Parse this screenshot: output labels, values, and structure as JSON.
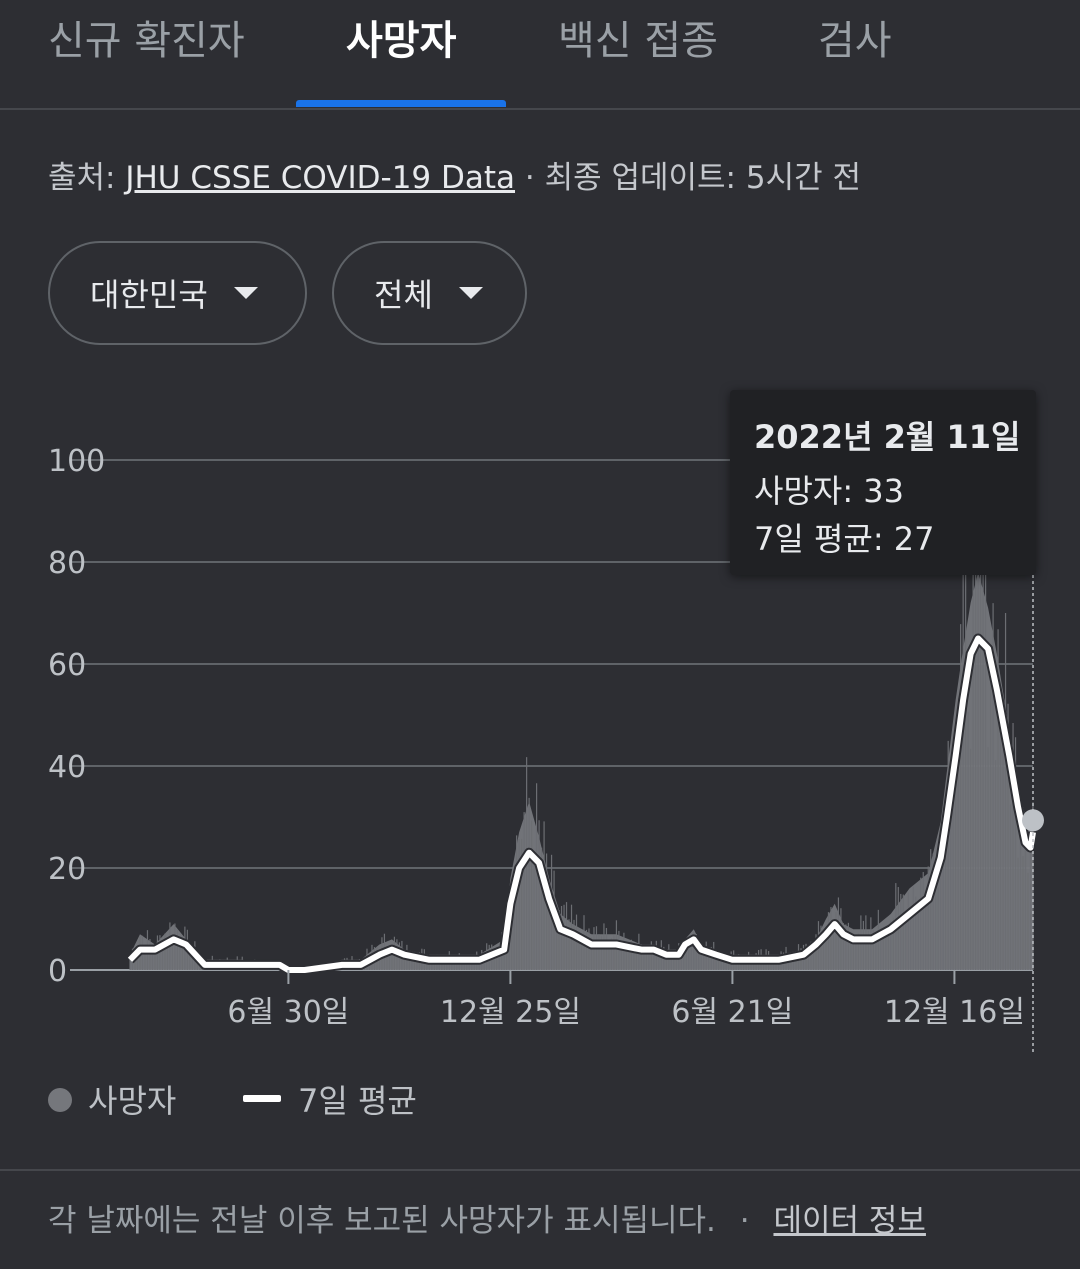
{
  "tabs": [
    {
      "label": "신규 확진자",
      "active": false
    },
    {
      "label": "사망자",
      "active": true
    },
    {
      "label": "백신 접종",
      "active": false
    },
    {
      "label": "검사",
      "active": false
    }
  ],
  "source": {
    "prefix": "출처: ",
    "link": "JHU CSSE COVID-19 Data",
    "suffix": " · 최종 업데이트: 5시간 전"
  },
  "filters": {
    "region": "대한민국",
    "period": "전체"
  },
  "tooltip": {
    "date": "2022년 2월 11일",
    "deaths_label": "사망자: 33",
    "avg_label": "7일 평균: 27"
  },
  "legend": {
    "daily": "사망자",
    "average": "7일 평균"
  },
  "footer": {
    "note": "각 날짜에는 전날 이후 보고된 사망자가 표시됩니다.",
    "separator": " · ",
    "link": "데이터 정보"
  },
  "colors": {
    "background": "#2d2e33",
    "bars": "#75777c",
    "average_line": "#ffffff",
    "tab_indicator": "#1a73e8",
    "gridline": "#5f6368"
  },
  "chart_data": {
    "type": "area",
    "yticks": [
      0,
      20,
      40,
      60,
      80,
      100
    ],
    "ylim": [
      0,
      100
    ],
    "xticks": [
      "6월 30일",
      "12월 25일",
      "6월 21일",
      "12월 16일"
    ],
    "xtick_days": [
      127,
      305,
      483,
      661
    ],
    "x_range_days": [
      0,
      724
    ],
    "grid": true,
    "series": [
      {
        "name": "7일 평균",
        "points": [
          [
            0,
            2
          ],
          [
            8,
            4
          ],
          [
            20,
            4
          ],
          [
            35,
            6
          ],
          [
            45,
            5
          ],
          [
            60,
            1
          ],
          [
            90,
            1
          ],
          [
            120,
            1
          ],
          [
            127,
            0
          ],
          [
            140,
            0
          ],
          [
            170,
            1
          ],
          [
            185,
            1
          ],
          [
            200,
            3
          ],
          [
            210,
            4
          ],
          [
            220,
            3
          ],
          [
            240,
            2
          ],
          [
            260,
            2
          ],
          [
            280,
            2
          ],
          [
            300,
            4
          ],
          [
            305,
            13
          ],
          [
            312,
            20
          ],
          [
            320,
            23
          ],
          [
            328,
            21
          ],
          [
            336,
            14
          ],
          [
            345,
            8
          ],
          [
            355,
            7
          ],
          [
            370,
            5
          ],
          [
            390,
            5
          ],
          [
            410,
            4
          ],
          [
            420,
            4
          ],
          [
            430,
            3
          ],
          [
            440,
            3
          ],
          [
            445,
            5
          ],
          [
            452,
            6
          ],
          [
            458,
            4
          ],
          [
            470,
            3
          ],
          [
            483,
            2
          ],
          [
            500,
            2
          ],
          [
            520,
            2
          ],
          [
            540,
            3
          ],
          [
            550,
            5
          ],
          [
            558,
            7
          ],
          [
            565,
            9
          ],
          [
            572,
            7
          ],
          [
            580,
            6
          ],
          [
            595,
            6
          ],
          [
            610,
            8
          ],
          [
            625,
            11
          ],
          [
            640,
            14
          ],
          [
            650,
            22
          ],
          [
            655,
            30
          ],
          [
            662,
            42
          ],
          [
            668,
            53
          ],
          [
            674,
            62
          ],
          [
            680,
            65
          ],
          [
            688,
            63
          ],
          [
            695,
            55
          ],
          [
            705,
            42
          ],
          [
            712,
            32
          ],
          [
            718,
            25
          ],
          [
            722,
            24
          ],
          [
            724,
            27
          ]
        ]
      },
      {
        "name": "사망자",
        "points": [
          [
            0,
            3
          ],
          [
            8,
            7
          ],
          [
            20,
            5
          ],
          [
            35,
            9
          ],
          [
            45,
            6
          ],
          [
            60,
            2
          ],
          [
            90,
            2
          ],
          [
            120,
            1
          ],
          [
            127,
            0
          ],
          [
            140,
            0
          ],
          [
            170,
            2
          ],
          [
            185,
            2
          ],
          [
            200,
            5
          ],
          [
            210,
            6
          ],
          [
            220,
            4
          ],
          [
            240,
            3
          ],
          [
            260,
            3
          ],
          [
            280,
            3
          ],
          [
            300,
            6
          ],
          [
            305,
            18
          ],
          [
            312,
            27
          ],
          [
            320,
            33
          ],
          [
            328,
            26
          ],
          [
            336,
            18
          ],
          [
            345,
            11
          ],
          [
            355,
            9
          ],
          [
            370,
            7
          ],
          [
            390,
            7
          ],
          [
            410,
            5
          ],
          [
            420,
            5
          ],
          [
            430,
            4
          ],
          [
            440,
            4
          ],
          [
            445,
            6
          ],
          [
            452,
            8
          ],
          [
            458,
            5
          ],
          [
            470,
            4
          ],
          [
            483,
            3
          ],
          [
            500,
            3
          ],
          [
            520,
            3
          ],
          [
            540,
            4
          ],
          [
            550,
            6
          ],
          [
            558,
            10
          ],
          [
            565,
            13
          ],
          [
            572,
            9
          ],
          [
            580,
            8
          ],
          [
            595,
            8
          ],
          [
            610,
            11
          ],
          [
            625,
            16
          ],
          [
            640,
            19
          ],
          [
            650,
            29
          ],
          [
            655,
            39
          ],
          [
            662,
            53
          ],
          [
            668,
            63
          ],
          [
            674,
            72
          ],
          [
            680,
            78
          ],
          [
            688,
            71
          ],
          [
            695,
            62
          ],
          [
            705,
            47
          ],
          [
            712,
            36
          ],
          [
            718,
            30
          ],
          [
            722,
            29
          ],
          [
            724,
            33
          ]
        ]
      }
    ]
  }
}
